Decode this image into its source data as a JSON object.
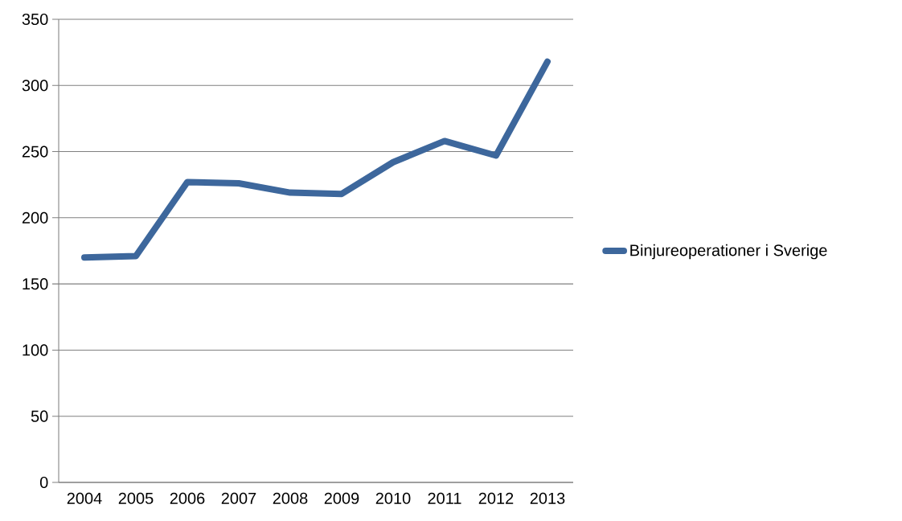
{
  "chart_data": {
    "type": "line",
    "categories": [
      "2004",
      "2005",
      "2006",
      "2007",
      "2008",
      "2009",
      "2010",
      "2011",
      "2012",
      "2013"
    ],
    "series": [
      {
        "name": "Binjureoperationer i Sverige",
        "color": "#3d679c",
        "values": [
          170,
          171,
          227,
          226,
          219,
          218,
          242,
          258,
          247,
          318
        ]
      }
    ],
    "ylim": [
      0,
      350
    ],
    "yticks": [
      0,
      50,
      100,
      150,
      200,
      250,
      300,
      350
    ],
    "grid": "y",
    "legend": "right",
    "marker": "none",
    "line_style": "solid"
  }
}
